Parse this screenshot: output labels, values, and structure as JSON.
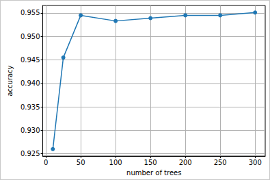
{
  "chart_data": {
    "type": "line",
    "x_label": "number of trees",
    "y_label": "accuracy",
    "x": [
      10,
      25,
      50,
      100,
      150,
      200,
      250,
      300
    ],
    "values": [
      0.926,
      0.9455,
      0.9545,
      0.9533,
      0.9539,
      0.9545,
      0.9545,
      0.9551
    ],
    "color": "#1f77b4",
    "marker": "circle",
    "line_style": "solid",
    "xlim": [
      -4.5,
      314.5
    ],
    "xticks": [
      0,
      50,
      100,
      150,
      200,
      250,
      300
    ],
    "ylim": [
      0.9245,
      0.9566
    ],
    "yticks": [
      0.925,
      {
        "value": 0.93,
        "label": "0.930"
      },
      0.935,
      {
        "value": 0.94,
        "label": "0.940"
      },
      0.945,
      {
        "value": 0.95,
        "label": "0.950"
      },
      0.955
    ],
    "grid": true
  }
}
